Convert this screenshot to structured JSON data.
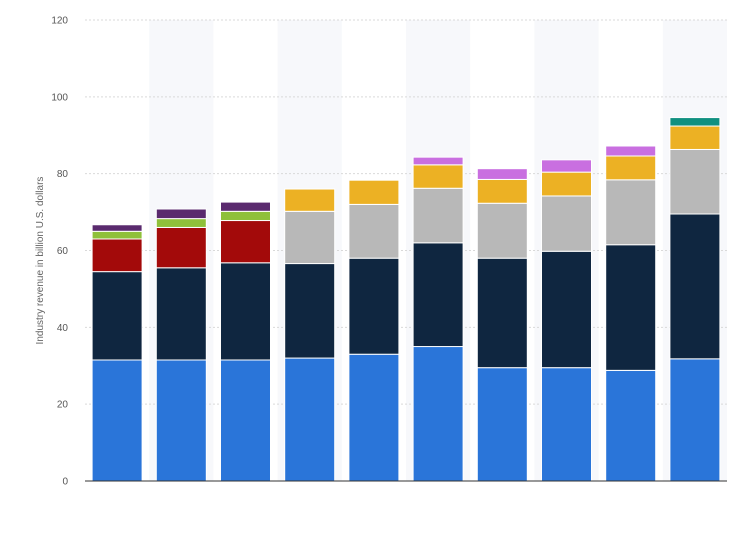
{
  "chart_data": {
    "type": "bar",
    "stacked": true,
    "title": "",
    "xlabel": "",
    "ylabel": "Industry revenue in billion U.S. dollars",
    "ylim": [
      0,
      120
    ],
    "yticks": [
      0,
      20,
      40,
      60,
      80,
      100,
      120
    ],
    "grid": true,
    "legend": "none",
    "categories": [
      "",
      "",
      "",
      "",
      "",
      "",
      "",
      "",
      "",
      ""
    ],
    "series": [
      {
        "color": "#2a75d9",
        "values": [
          31.5,
          31.5,
          31.5,
          32,
          33,
          35,
          29.5,
          29.5,
          28.8,
          31.8
        ]
      },
      {
        "color": "#0f2640",
        "values": [
          23,
          24,
          25.3,
          24.6,
          25,
          27,
          28.5,
          30.3,
          32.7,
          37.7
        ]
      },
      {
        "color": "#a30a0a",
        "values": [
          8.5,
          10.5,
          11,
          0,
          0,
          0,
          0,
          0,
          0,
          0
        ]
      },
      {
        "color": "#b8b8b8",
        "values": [
          0,
          0,
          0,
          13.6,
          14,
          14.2,
          14.3,
          14.4,
          16.9,
          16.8
        ]
      },
      {
        "color": "#8fc03a",
        "values": [
          2,
          2.3,
          2.4,
          0,
          0,
          0,
          0,
          0,
          0,
          0
        ]
      },
      {
        "color": "#ecb124",
        "values": [
          0,
          0,
          0,
          5.8,
          6.3,
          6.1,
          6.2,
          6.2,
          6.2,
          6.1
        ]
      },
      {
        "color": "#5a2a6e",
        "values": [
          1.7,
          2.5,
          2.4,
          0,
          0,
          0,
          0,
          0,
          0,
          0
        ]
      },
      {
        "color": "#c96fe0",
        "values": [
          0,
          0,
          0,
          0,
          0,
          2,
          2.8,
          3.2,
          2.6,
          0
        ]
      },
      {
        "color": "#109080",
        "values": [
          0,
          0,
          0,
          0,
          0,
          0,
          0,
          0,
          0,
          2.2
        ]
      }
    ]
  }
}
